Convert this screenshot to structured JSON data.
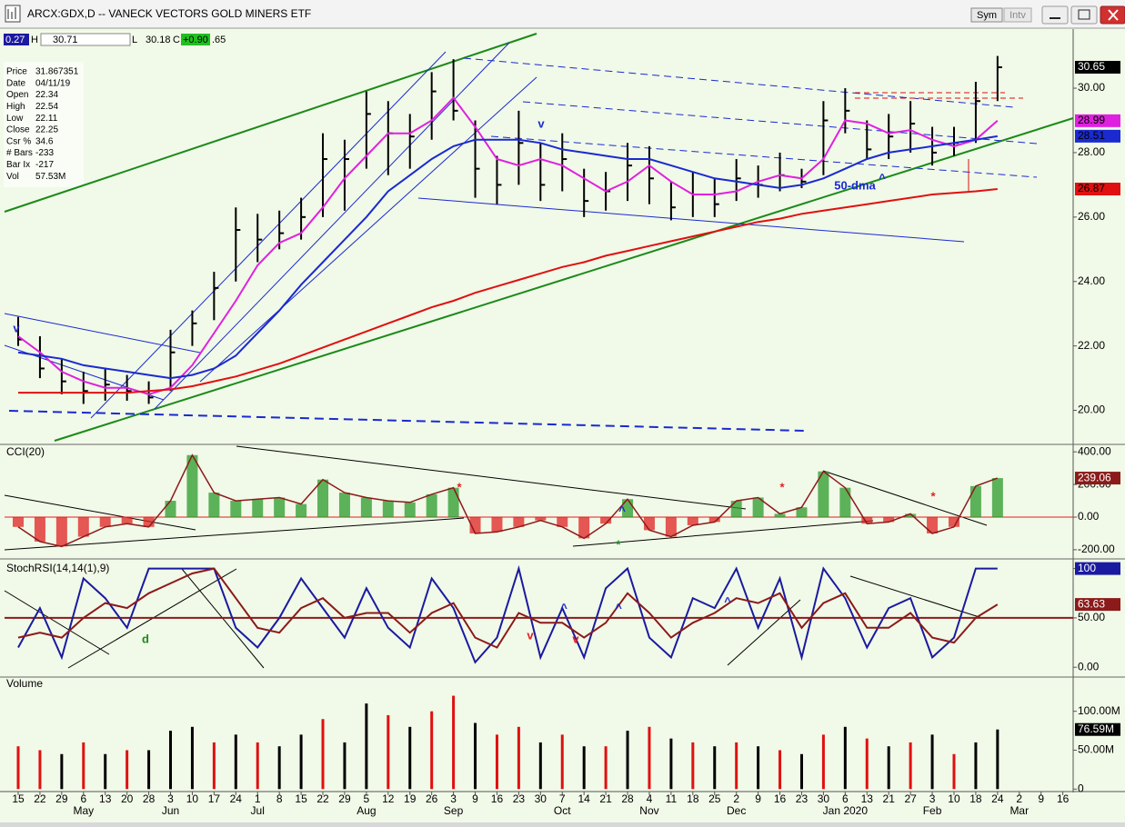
{
  "window": {
    "title": "ARCX:GDX,D -- VANECK VECTORS GOLD MINERS ETF",
    "buttons": [
      "Sym",
      "Intv"
    ]
  },
  "quote_strip": {
    "change": "0.27",
    "high_label": "H",
    "high": "30.71",
    "low_label": "L",
    "low": "30.18",
    "close_label": "C",
    "net": "+0.90",
    "last": ".65"
  },
  "info_panel": [
    {
      "label": "Price",
      "value": "31.867351"
    },
    {
      "label": "Date",
      "value": "04/11/19"
    },
    {
      "label": "Open",
      "value": "22.34"
    },
    {
      "label": "High",
      "value": "22.54"
    },
    {
      "label": "Low",
      "value": "22.11"
    },
    {
      "label": "Close",
      "value": "22.25"
    },
    {
      "label": "Csr %",
      "value": "34.6"
    },
    {
      "label": "# Bars",
      "value": "-233"
    },
    {
      "label": "Bar Ix",
      "value": "-217"
    },
    {
      "label": "Vol",
      "value": "57.53M"
    }
  ],
  "chart_data": [
    {
      "type": "ohlc",
      "color": "#000000",
      "ylim": [
        19.0,
        31.75
      ],
      "yticks": [
        {
          "value": 20,
          "label": "20.00"
        },
        {
          "value": 22,
          "label": "22.00"
        },
        {
          "value": 24,
          "label": "24.00"
        },
        {
          "value": 26,
          "label": "26.00"
        },
        {
          "value": 28,
          "label": "28.00"
        },
        {
          "value": 30,
          "label": "30.00"
        }
      ],
      "high": [
        22.9,
        22.3,
        21.6,
        21.2,
        21.3,
        21.1,
        20.9,
        22.5,
        23.1,
        24.3,
        26.3,
        26.1,
        26.2,
        26.6,
        28.6,
        28.4,
        29.9,
        29.6,
        29.2,
        30.5,
        30.9,
        29.0,
        27.9,
        29.3,
        28.3,
        28.6,
        27.5,
        27.4,
        28.3,
        28.2,
        27.1,
        27.4,
        27.2,
        27.8,
        27.6,
        28.0,
        27.5,
        29.6,
        30.0,
        29.0,
        29.2,
        29.6,
        28.8,
        28.8,
        30.2,
        31.0,
        null,
        null,
        null
      ],
      "low": [
        22.0,
        21.0,
        20.5,
        20.2,
        20.3,
        20.3,
        20.2,
        20.6,
        22.0,
        22.8,
        24.0,
        24.6,
        25.0,
        25.3,
        26.0,
        26.2,
        27.5,
        27.3,
        27.5,
        28.4,
        29.0,
        26.6,
        26.4,
        27.0,
        26.5,
        26.8,
        26.0,
        26.2,
        26.5,
        26.4,
        25.9,
        26.0,
        26.0,
        26.5,
        26.6,
        26.8,
        26.9,
        27.3,
        28.6,
        27.8,
        27.8,
        28.0,
        27.6,
        27.9,
        28.3,
        29.6,
        null,
        null,
        null
      ],
      "close": [
        22.2,
        21.3,
        20.9,
        20.6,
        20.8,
        20.6,
        20.4,
        21.8,
        22.7,
        23.8,
        25.6,
        25.3,
        25.5,
        26.0,
        27.8,
        27.8,
        29.2,
        28.6,
        28.5,
        29.9,
        29.3,
        27.5,
        27.0,
        28.3,
        27.0,
        27.8,
        26.5,
        26.8,
        27.6,
        27.2,
        26.3,
        26.7,
        26.4,
        27.2,
        27.0,
        27.3,
        27.1,
        29.0,
        29.3,
        28.1,
        28.5,
        28.9,
        28.0,
        28.3,
        29.6,
        30.65,
        null,
        null,
        null
      ],
      "overlays": [
        {
          "color": "#e020e0",
          "values": [
            22.3,
            21.8,
            21.2,
            20.9,
            20.7,
            20.7,
            20.5,
            20.7,
            21.4,
            22.4,
            23.4,
            24.5,
            25.2,
            25.5,
            26.3,
            27.2,
            27.9,
            28.6,
            28.6,
            29.0,
            29.7,
            28.8,
            27.8,
            27.6,
            27.8,
            27.6,
            27.2,
            26.8,
            27.1,
            27.6,
            27.1,
            26.7,
            26.7,
            26.8,
            27.1,
            27.3,
            27.2,
            27.8,
            29.0,
            28.9,
            28.6,
            28.7,
            28.4,
            28.2,
            28.4,
            28.99,
            null,
            null,
            null
          ]
        },
        {
          "color": "#1a2ad0",
          "values": [
            21.8,
            21.7,
            21.6,
            21.4,
            21.3,
            21.2,
            21.1,
            21.0,
            21.1,
            21.3,
            21.7,
            22.4,
            23.1,
            23.9,
            24.6,
            25.3,
            26.0,
            26.8,
            27.3,
            27.8,
            28.2,
            28.4,
            28.4,
            28.4,
            28.3,
            28.1,
            28.0,
            27.9,
            27.8,
            27.8,
            27.6,
            27.4,
            27.2,
            27.1,
            27.0,
            26.9,
            27.0,
            27.2,
            27.5,
            27.8,
            28.0,
            28.1,
            28.2,
            28.3,
            28.4,
            28.51,
            null,
            null,
            null
          ]
        },
        {
          "color": "#e01010",
          "values": [
            20.55,
            20.55,
            20.55,
            20.55,
            20.55,
            20.55,
            20.6,
            20.65,
            20.75,
            20.9,
            21.05,
            21.25,
            21.45,
            21.7,
            21.95,
            22.2,
            22.45,
            22.7,
            22.95,
            23.2,
            23.4,
            23.65,
            23.85,
            24.05,
            24.25,
            24.45,
            24.6,
            24.8,
            24.95,
            25.1,
            25.25,
            25.4,
            25.55,
            25.7,
            25.85,
            25.95,
            26.1,
            26.2,
            26.3,
            26.4,
            26.5,
            26.6,
            26.7,
            26.75,
            26.8,
            26.87,
            null,
            null,
            null
          ]
        }
      ],
      "annotations": [
        {
          "text": "v",
          "color": "#1a2ad0"
        },
        {
          "text": "v",
          "color": "#1a2ad0"
        },
        {
          "text": "50-dma",
          "color": "#1a2ad0"
        },
        {
          "text": "^",
          "color": "#1a2ad0"
        }
      ]
    },
    {
      "type": "bar",
      "title": "CCI(20)",
      "pos_color": "#2a9a2a",
      "neg_color": "#e02020",
      "line_color": "#8b1a1a",
      "hline": 0,
      "ylim": [
        -245,
        440
      ],
      "yticks": [
        {
          "value": -200,
          "label": "-200.00"
        },
        {
          "value": 0,
          "label": "0.00"
        },
        {
          "value": 200,
          "label": "200.00"
        },
        {
          "value": 400,
          "label": "400.00"
        }
      ],
      "values": [
        -60,
        -150,
        -180,
        -120,
        -60,
        -40,
        -60,
        100,
        380,
        150,
        100,
        110,
        120,
        80,
        230,
        150,
        120,
        100,
        90,
        140,
        180,
        -100,
        -90,
        -60,
        -20,
        -60,
        -130,
        -40,
        110,
        -80,
        -120,
        -50,
        -30,
        100,
        120,
        20,
        60,
        280,
        180,
        -40,
        -30,
        20,
        -100,
        -60,
        190,
        239.06,
        null,
        null,
        null
      ],
      "annotations": [
        {
          "text": "*",
          "color": "#e02020"
        },
        {
          "text": "*",
          "color": "#e02020"
        },
        {
          "text": "*",
          "color": "#e02020"
        },
        {
          "text": "^",
          "color": "#1a2ad0"
        },
        {
          "text": "*",
          "color": "#1a8a1a"
        }
      ]
    },
    {
      "type": "line",
      "title": "StochRSI(14,14(1),9)",
      "hline": 50,
      "hline_color": "#8b1a1a",
      "ylim": [
        -9,
        107
      ],
      "yticks": [
        {
          "value": 0,
          "label": "0.00"
        },
        {
          "value": 50,
          "label": "50.00"
        },
        {
          "value": 100,
          "label": "100.00"
        }
      ],
      "series": [
        {
          "color": "#1a1aa0",
          "values": [
            20,
            60,
            10,
            90,
            70,
            40,
            100,
            100,
            100,
            100,
            40,
            20,
            50,
            90,
            60,
            30,
            80,
            40,
            20,
            90,
            60,
            5,
            30,
            100,
            10,
            60,
            10,
            80,
            100,
            30,
            10,
            70,
            60,
            100,
            40,
            90,
            10,
            100,
            70,
            20,
            60,
            70,
            10,
            30,
            100,
            100,
            null,
            null,
            null
          ]
        },
        {
          "color": "#8b1a1a",
          "values": [
            30,
            35,
            30,
            50,
            65,
            60,
            75,
            85,
            95,
            100,
            70,
            40,
            35,
            60,
            70,
            50,
            55,
            55,
            35,
            55,
            65,
            30,
            20,
            55,
            45,
            45,
            30,
            45,
            75,
            55,
            30,
            45,
            55,
            70,
            65,
            75,
            40,
            65,
            75,
            40,
            40,
            55,
            30,
            25,
            50,
            63.63,
            null,
            null,
            null
          ]
        }
      ],
      "annotations": [
        {
          "text": "d",
          "color": "#1a8a1a"
        },
        {
          "text": "v",
          "color": "#e02020"
        },
        {
          "text": "v",
          "color": "#e02020"
        },
        {
          "text": "^",
          "color": "#1a2ad0"
        },
        {
          "text": "^",
          "color": "#1a2ad0"
        },
        {
          "text": "^",
          "color": "#1a2ad0"
        }
      ]
    },
    {
      "type": "volume",
      "title": "Volume",
      "ylim": [
        -2,
        144
      ],
      "yticks": [
        0,
        {
          "value": 50,
          "label": "50.00M"
        },
        {
          "value": 100,
          "label": "100.00M"
        }
      ],
      "categories": [
        "15",
        "22",
        "29",
        "6",
        "13",
        "20",
        "28",
        "3",
        "10",
        "17",
        "24",
        "1",
        "8",
        "15",
        "22",
        "29",
        "5",
        "12",
        "19",
        "26",
        "3",
        "9",
        "16",
        "23",
        "30",
        "7",
        "14",
        "21",
        "28",
        "4",
        "11",
        "18",
        "25",
        "2",
        "9",
        "16",
        "23",
        "30",
        "6",
        "13",
        "21",
        "27",
        "3",
        "10",
        "18",
        "24",
        "2",
        "9",
        "16"
      ],
      "months": [
        null,
        null,
        null,
        "May",
        null,
        null,
        null,
        "Jun",
        null,
        null,
        null,
        "Jul",
        null,
        null,
        null,
        null,
        "Aug",
        null,
        null,
        null,
        "Sep",
        null,
        null,
        null,
        null,
        "Oct",
        null,
        null,
        null,
        "Nov",
        null,
        null,
        null,
        "Dec",
        null,
        null,
        null,
        null,
        "Jan 2020",
        null,
        null,
        null,
        "Feb",
        null,
        null,
        null,
        "Mar",
        null,
        null
      ],
      "values": [
        55,
        50,
        45,
        60,
        45,
        50,
        50,
        75,
        80,
        60,
        70,
        60,
        55,
        70,
        90,
        60,
        110,
        95,
        80,
        100,
        120,
        85,
        70,
        80,
        60,
        70,
        55,
        55,
        75,
        80,
        65,
        60,
        55,
        60,
        55,
        50,
        45,
        70,
        80,
        65,
        55,
        60,
        70,
        45,
        60,
        76.59,
        null,
        null,
        null
      ],
      "value_labels": [
        null,
        null,
        null,
        null,
        null,
        null,
        null,
        null,
        null,
        null,
        null,
        null,
        null,
        null,
        null,
        null,
        null,
        null,
        null,
        null,
        null,
        null,
        null,
        null,
        null,
        null,
        null,
        null,
        null,
        null,
        null,
        null,
        null,
        null,
        null,
        null,
        null,
        null,
        null,
        null,
        null,
        null,
        null,
        null,
        null,
        "76.59M",
        null,
        null,
        null
      ],
      "bar_colors": [
        "#e01010",
        "#e01010",
        "#000000",
        "#e01010",
        "#000000",
        "#e01010",
        "#000000",
        "#000000",
        "#000000",
        "#e01010",
        "#000000",
        "#e01010",
        "#000000",
        "#000000",
        "#e01010",
        "#000000",
        "#000000",
        "#e01010",
        "#000000",
        "#e01010",
        "#e01010",
        "#000000",
        "#e01010",
        "#e01010",
        "#000000",
        "#e01010",
        "#000000",
        "#e01010",
        "#000000",
        "#e01010",
        "#000000",
        "#e01010",
        "#000000",
        "#e01010",
        "#000000",
        "#e01010",
        "#000000",
        "#e01010",
        "#000000",
        "#e01010",
        "#000000",
        "#e01010",
        "#000000",
        "#e01010",
        "#000000",
        "#000000",
        null,
        null,
        null
      ]
    }
  ]
}
